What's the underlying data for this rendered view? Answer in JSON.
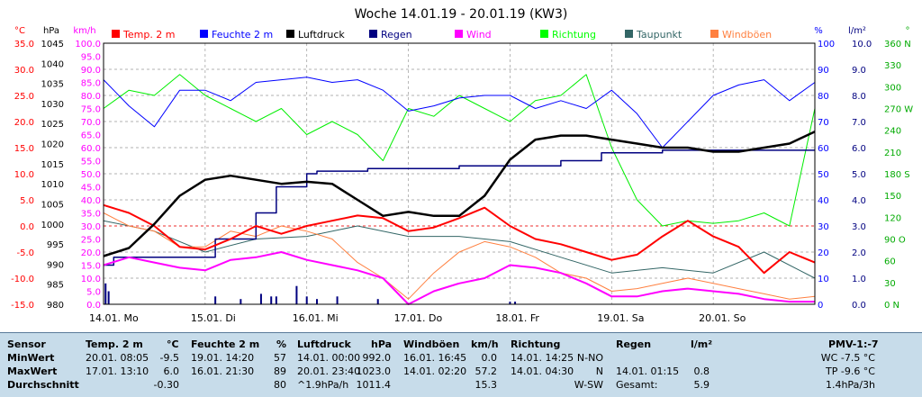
{
  "chart_data": {
    "type": "line",
    "title": "Woche 14.01.19 - 20.01.19 (KW3)",
    "axes": {
      "temp": {
        "unit": "°C",
        "min": -15,
        "max": 35,
        "step": 5,
        "ticks": [
          "35.0",
          "30.0",
          "25.0",
          "20.0",
          "15.0",
          "10.0",
          "5.0",
          "0.0",
          "-5.0",
          "-10.0",
          "-15.0"
        ],
        "color": "#ff0000"
      },
      "pressure": {
        "unit": "hPa",
        "min": 980,
        "max": 1045,
        "step": 5,
        "ticks": [
          "1045",
          "1040",
          "1035",
          "1030",
          "1025",
          "1020",
          "1015",
          "1010",
          "1005",
          "1000",
          "995",
          "990",
          "985",
          "980"
        ],
        "color": "#000000"
      },
      "wind": {
        "unit": "km/h",
        "min": 0,
        "max": 100,
        "step": 5,
        "ticks": [
          "100.0",
          "95.0",
          "90.0",
          "85.0",
          "80.0",
          "75.0",
          "70.0",
          "65.0",
          "60.0",
          "55.0",
          "50.0",
          "45.0",
          "40.0",
          "35.0",
          "30.0",
          "25.0",
          "20.0",
          "15.0",
          "10.0",
          "5.0",
          "0.0"
        ],
        "color": "#ff00ff"
      },
      "humidity": {
        "unit": "%",
        "min": 0,
        "max": 100,
        "ticks": [
          "100",
          "90",
          "80",
          "70",
          "60",
          "50",
          "40",
          "30",
          "20",
          "10",
          "0"
        ],
        "color": "#0000ff"
      },
      "rain": {
        "unit": "l/m²",
        "min": 0,
        "max": 10,
        "ticks": [
          "10.0",
          "9.0",
          "8.0",
          "7.0",
          "6.0",
          "5.0",
          "4.0",
          "3.0",
          "2.0",
          "1.0",
          "0.0"
        ],
        "color": "#000080"
      },
      "direction": {
        "unit": "°",
        "ticks": [
          "360 N",
          "330",
          "300",
          "270 W",
          "240",
          "210",
          "180 S",
          "150",
          "120",
          "90 O",
          "60",
          "30",
          "0 N"
        ],
        "color": "#00aa00"
      }
    },
    "x_labels": [
      "14.01. Mo",
      "15.01. Di",
      "16.01. Mi",
      "17.01. Do",
      "18.01. Fr",
      "19.01. Sa",
      "20.01. So"
    ],
    "legend": [
      {
        "name": "Temp. 2 m",
        "color": "#ff0000"
      },
      {
        "name": "Feuchte 2 m",
        "color": "#0000ff"
      },
      {
        "name": "Luftdruck",
        "color": "#000000"
      },
      {
        "name": "Regen",
        "color": "#000080"
      },
      {
        "name": "Wind",
        "color": "#ff00ff"
      },
      {
        "name": "Richtung",
        "color": "#00ff00"
      },
      {
        "name": "Taupunkt",
        "color": "#336666"
      },
      {
        "name": "Windböen",
        "color": "#ff8040"
      }
    ],
    "series": [
      {
        "name": "Temp. 2 m",
        "axis": "temp",
        "color": "#ff0000",
        "width": 2,
        "x": [
          0,
          0.25,
          0.5,
          0.75,
          1,
          1.25,
          1.5,
          1.75,
          2,
          2.25,
          2.5,
          2.75,
          3,
          3.25,
          3.5,
          3.75,
          4,
          4.25,
          4.5,
          4.75,
          5,
          5.25,
          5.5,
          5.75,
          6,
          6.25,
          6.5,
          6.75,
          7
        ],
        "values": [
          4,
          2.5,
          0,
          -4,
          -4.5,
          -2.5,
          0,
          -1.5,
          0,
          1,
          2,
          1.5,
          -1,
          -0.3,
          1.5,
          3.5,
          0,
          -2.5,
          -3.5,
          -5,
          -6.5,
          -5.5,
          -2,
          1,
          -2,
          -4,
          -9,
          -5,
          -7
        ]
      },
      {
        "name": "Feuchte 2 m",
        "axis": "humidity",
        "color": "#0000ff",
        "width": 1,
        "x": [
          0,
          0.25,
          0.5,
          0.75,
          1,
          1.25,
          1.5,
          1.75,
          2,
          2.25,
          2.5,
          2.75,
          3,
          3.25,
          3.5,
          3.75,
          4,
          4.25,
          4.5,
          4.75,
          5,
          5.25,
          5.5,
          5.75,
          6,
          6.25,
          6.5,
          6.75,
          7
        ],
        "values": [
          86,
          76,
          68,
          82,
          82,
          78,
          85,
          86,
          87,
          85,
          86,
          82,
          74,
          76,
          79,
          80,
          80,
          75,
          78,
          75,
          82,
          73,
          60,
          70,
          80,
          84,
          86,
          78,
          85
        ]
      },
      {
        "name": "Luftdruck",
        "axis": "pressure",
        "color": "#000000",
        "width": 2.5,
        "x": [
          0,
          0.25,
          0.5,
          0.75,
          1,
          1.25,
          1.5,
          1.75,
          2,
          2.25,
          2.5,
          2.75,
          3,
          3.25,
          3.5,
          3.75,
          4,
          4.25,
          4.5,
          4.75,
          5,
          5.25,
          5.5,
          5.75,
          6,
          6.25,
          6.5,
          6.75,
          7
        ],
        "values": [
          992,
          994,
          1000,
          1007,
          1011,
          1012,
          1011,
          1010,
          1010.5,
          1010,
          1006,
          1002,
          1003,
          1002,
          1002,
          1007,
          1016,
          1021,
          1022,
          1022,
          1021,
          1020,
          1019,
          1019,
          1018,
          1018,
          1019,
          1020,
          1023
        ]
      },
      {
        "name": "Wind",
        "axis": "wind",
        "color": "#ff00ff",
        "width": 2,
        "x": [
          0,
          0.25,
          0.5,
          0.75,
          1,
          1.25,
          1.5,
          1.75,
          2,
          2.25,
          2.5,
          2.75,
          3,
          3.25,
          3.5,
          3.75,
          4,
          4.25,
          4.5,
          4.75,
          5,
          5.25,
          5.5,
          5.75,
          6,
          6.25,
          6.5,
          6.75,
          7
        ],
        "values": [
          15,
          18,
          16,
          14,
          13,
          17,
          18,
          20,
          17,
          15,
          13,
          10,
          0,
          5,
          8,
          10,
          15,
          14,
          12,
          8,
          3,
          3,
          5,
          6,
          5,
          4,
          2,
          1,
          1
        ]
      },
      {
        "name": "Taupunkt",
        "axis": "temp",
        "color": "#336666",
        "width": 1,
        "x": [
          0,
          0.5,
          1,
          1.5,
          2,
          2.5,
          3,
          3.5,
          4,
          4.5,
          5,
          5.5,
          6,
          6.5,
          7
        ],
        "values": [
          1,
          -1,
          -5,
          -2.5,
          -2,
          0,
          -2,
          -2,
          -3,
          -6,
          -9,
          -8,
          -9,
          -5,
          -10
        ]
      },
      {
        "name": "Windböen",
        "axis": "wind",
        "color": "#ff8040",
        "width": 1,
        "x": [
          0,
          0.25,
          0.5,
          0.75,
          1,
          1.25,
          1.5,
          1.75,
          2,
          2.25,
          2.5,
          2.75,
          3,
          3.25,
          3.5,
          3.75,
          4,
          4.25,
          4.5,
          4.75,
          5,
          5.25,
          5.5,
          5.75,
          6,
          6.25,
          6.5,
          6.75,
          7
        ],
        "values": [
          35,
          30,
          28,
          22,
          22,
          28,
          26,
          30,
          28,
          25,
          16,
          10,
          2,
          12,
          20,
          24,
          22,
          18,
          12,
          10,
          5,
          6,
          8,
          10,
          8,
          6,
          4,
          2,
          3
        ]
      },
      {
        "name": "Richtung",
        "axis": "humidity",
        "color": "#00ee00",
        "width": 1,
        "x": [
          0,
          0.25,
          0.5,
          0.75,
          1,
          1.25,
          1.5,
          1.75,
          2,
          2.25,
          2.5,
          2.75,
          3,
          3.25,
          3.5,
          3.75,
          4,
          4.25,
          4.5,
          4.75,
          5,
          5.25,
          5.5,
          5.75,
          6,
          6.25,
          6.5,
          6.75,
          7
        ],
        "values": [
          75,
          82,
          80,
          88,
          80,
          75,
          70,
          75,
          65,
          70,
          65,
          55,
          75,
          72,
          80,
          75,
          70,
          78,
          80,
          88,
          60,
          40,
          30,
          32,
          31,
          32,
          35,
          30,
          75
        ]
      },
      {
        "name": "Regen",
        "axis": "rain",
        "color": "#000080",
        "width": 1.5,
        "step": true,
        "x": [
          0,
          0.1,
          0.5,
          1.0,
          1.1,
          1.5,
          1.7,
          2.0,
          2.1,
          2.6,
          3.0,
          3.5,
          4.0,
          4.5,
          4.9,
          5.2,
          5.5,
          6.0,
          6.5,
          7.0
        ],
        "values": [
          1.5,
          1.8,
          1.8,
          1.8,
          2.5,
          3.5,
          4.5,
          5.0,
          5.1,
          5.2,
          5.2,
          5.3,
          5.3,
          5.5,
          5.8,
          5.8,
          5.9,
          5.9,
          5.9,
          5.9
        ]
      }
    ],
    "rain_bars": [
      {
        "x": 0.02,
        "value": 0.8
      },
      {
        "x": 0.05,
        "value": 0.5
      },
      {
        "x": 1.1,
        "value": 0.3
      },
      {
        "x": 1.35,
        "value": 0.2
      },
      {
        "x": 1.55,
        "value": 0.4
      },
      {
        "x": 1.65,
        "value": 0.3
      },
      {
        "x": 1.7,
        "value": 0.3
      },
      {
        "x": 1.9,
        "value": 0.7
      },
      {
        "x": 2.0,
        "value": 0.3
      },
      {
        "x": 2.1,
        "value": 0.2
      },
      {
        "x": 2.3,
        "value": 0.3
      },
      {
        "x": 2.7,
        "value": 0.2
      },
      {
        "x": 4.0,
        "value": 0.1
      },
      {
        "x": 4.05,
        "value": 0.1
      }
    ]
  },
  "summary": {
    "rows": [
      "Sensor",
      "MinWert",
      "MaxWert",
      "Durchschnitt"
    ],
    "temp": {
      "header": "Temp. 2 m",
      "unit": "°C",
      "min_time": "20.01.  08:05",
      "min_val": "-9.5",
      "max_time": "17.01.  13:10",
      "max_val": "6.0",
      "avg": "-0.30"
    },
    "hum": {
      "header": "Feuchte  2 m",
      "unit": "%",
      "min_time": "19.01.  14:20",
      "min_val": "57",
      "max_time": "16.01.  21:30",
      "max_val": "89",
      "avg": "80"
    },
    "press": {
      "header": "Luftdruck",
      "unit": "hPa",
      "min_time": "14.01.  00:00",
      "min_val": "992.0",
      "max_time": "20.01.  23:40",
      "max_val": "1023.0",
      "trend": "^1.9hPa/h",
      "avg": "1011.4"
    },
    "gust": {
      "header": "Windböen",
      "unit": "km/h",
      "min_time": "16.01.  16:45",
      "min_val": "0.0",
      "max_time": "14.01.  02:20",
      "max_val": "57.2",
      "avg": "15.3"
    },
    "dir": {
      "header": "Richtung",
      "min_time": "14.01.  14:25",
      "min_val": "N-NO",
      "max_time": "14.01.  04:30",
      "max_val": "N",
      "avg": "W-SW"
    },
    "rain": {
      "header": "Regen",
      "unit": "l/m²",
      "max_time": "14.01.  01:15",
      "max_val": "0.8",
      "total_label": "Gesamt:",
      "total": "5.9"
    },
    "pmv": {
      "header": "PMV-1:-7",
      "wc": "WC -7.5 °C",
      "tp": "TP -9.6 °C",
      "trend": "1.4hPa/3h"
    }
  }
}
